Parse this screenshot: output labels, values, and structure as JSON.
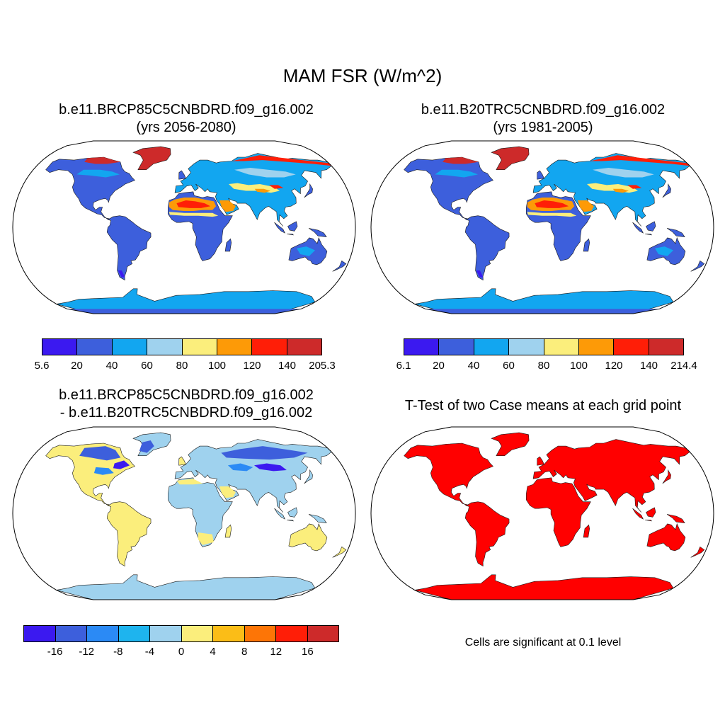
{
  "figure": {
    "title": "MAM FSR (W/m^2)",
    "note": "Cells are significant at 0.1 level"
  },
  "panels": [
    {
      "id": "a",
      "title_line1": "b.e11.BRCP85C5CNBDRD.f09_g16.002",
      "title_line2": "(yrs 2056-2080)",
      "colorbar": {
        "colors": [
          "#3b19f0",
          "#3d5fdc",
          "#12a6f0",
          "#9fd2ee",
          "#fbee7c",
          "#fd9a07",
          "#ff1e07",
          "#cd2a2a"
        ],
        "labels": [
          "5.6",
          "20",
          "40",
          "60",
          "80",
          "100",
          "120",
          "140",
          "205.3"
        ]
      }
    },
    {
      "id": "b",
      "title_line1": "b.e11.B20TRC5CNBDRD.f09_g16.002",
      "title_line2": "(yrs 1981-2005)",
      "colorbar": {
        "colors": [
          "#3b19f0",
          "#3d5fdc",
          "#12a6f0",
          "#9fd2ee",
          "#fbee7c",
          "#fd9a07",
          "#ff1e07",
          "#cd2a2a"
        ],
        "labels": [
          "6.1",
          "20",
          "40",
          "60",
          "80",
          "100",
          "120",
          "140",
          "214.4"
        ]
      }
    },
    {
      "id": "c",
      "title_line1": "b.e11.BRCP85C5CNBDRD.f09_g16.002",
      "title_line2": "- b.e11.B20TRC5CNBDRD.f09_g16.002",
      "colorbar": {
        "colors": [
          "#3b19f0",
          "#3d5fdc",
          "#2b8af5",
          "#1eb4ee",
          "#9fd2ee",
          "#fbee7c",
          "#fbbd17",
          "#fd7506",
          "#ff1e07",
          "#cd2a2a"
        ],
        "labels": [
          "-16",
          "-12",
          "-8",
          "-4",
          "0",
          "4",
          "8",
          "12",
          "16"
        ]
      }
    },
    {
      "id": "d",
      "title_line1": "T-Test of two Case means at each grid point"
    }
  ],
  "colors": {
    "ocean": "#ffffff",
    "outline": "#000000",
    "significant": "#ff0000"
  }
}
